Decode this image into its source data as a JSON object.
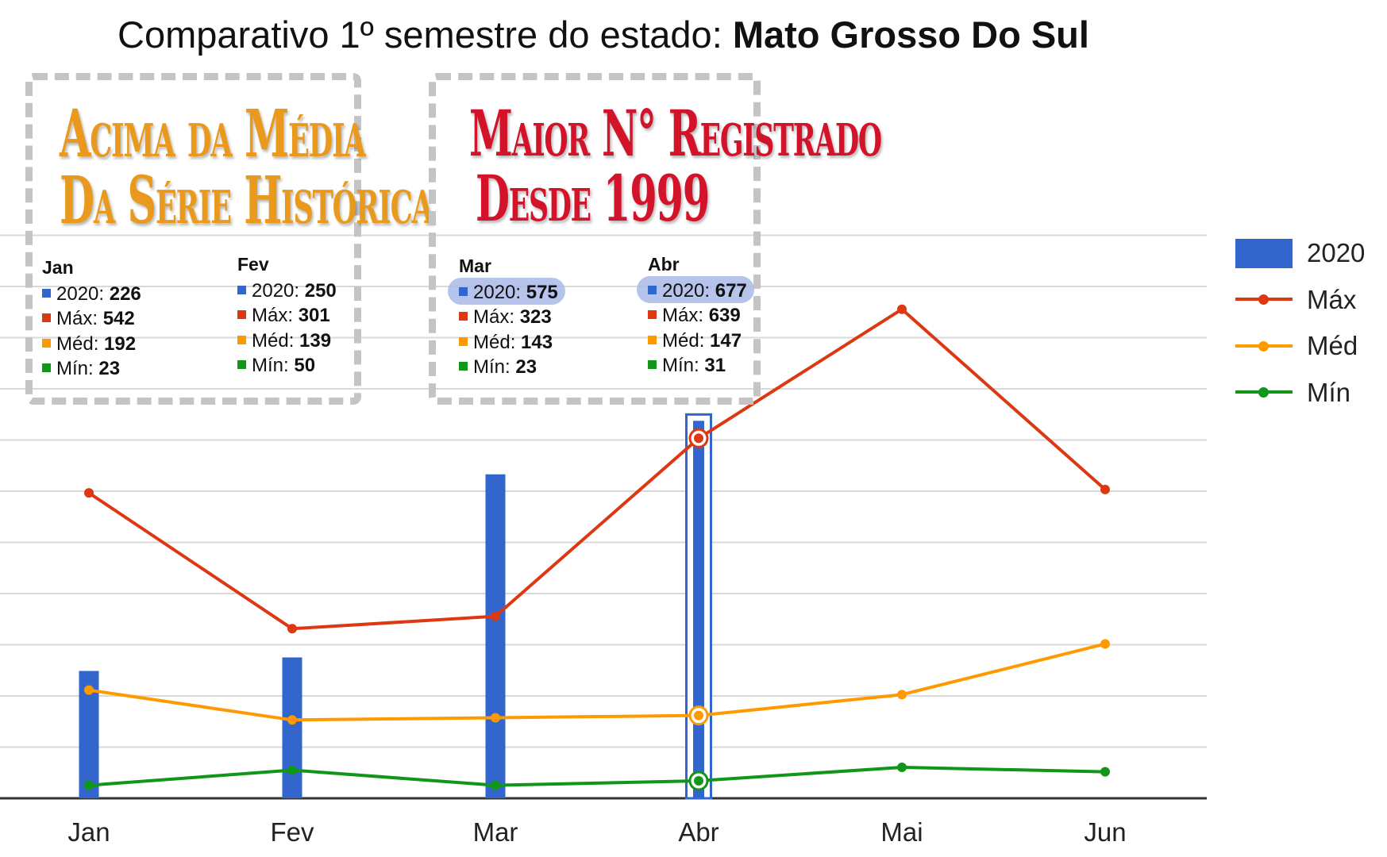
{
  "title": {
    "prefix": "Comparativo 1º semestre do estado: ",
    "state": "Mato Grosso Do Sul"
  },
  "callouts": [
    {
      "line1": "Acima da Média",
      "line2": "Da Série Histórica",
      "color": "#e99a1c"
    },
    {
      "line1": "Maior N° Registrado",
      "line2": "Desde 1999",
      "color": "#d3132a"
    }
  ],
  "tooltips": [
    {
      "month": "Jan",
      "l2020": "2020: ",
      "v2020": "226",
      "lmax": "Máx: ",
      "vmax": "542",
      "lmed": "Méd: ",
      "vmed": "192",
      "lmin": "Mín: ",
      "vmin": "23"
    },
    {
      "month": "Fev",
      "l2020": "2020: ",
      "v2020": "250",
      "lmax": "Máx: ",
      "vmax": "301",
      "lmed": "Méd: ",
      "vmed": "139",
      "lmin": "Mín: ",
      "vmin": "50"
    },
    {
      "month": "Mar",
      "l2020": "2020: ",
      "v2020": "575",
      "lmax": "Máx: ",
      "vmax": "323",
      "lmed": "Méd: ",
      "vmed": "143",
      "lmin": "Mín: ",
      "vmin": "23"
    },
    {
      "month": "Abr",
      "l2020": "2020: ",
      "v2020": "677",
      "lmax": "Máx: ",
      "vmax": "639",
      "lmed": "Méd: ",
      "vmed": "147",
      "lmin": "Mín: ",
      "vmin": "31"
    }
  ],
  "colors": {
    "bar": "#3366cc",
    "max": "#dc3912",
    "med": "#ff9900",
    "min": "#109618",
    "grid": "#d9d9d9",
    "axis": "#333333"
  },
  "chart_data": {
    "type": "bar",
    "categories": [
      "Jan",
      "Fev",
      "Mar",
      "Abr",
      "Mai",
      "Jun"
    ],
    "series": [
      {
        "name": "2020",
        "type": "bar",
        "values": [
          226,
          250,
          575,
          677,
          null,
          null
        ]
      },
      {
        "name": "Máx",
        "type": "line",
        "values": [
          542,
          301,
          323,
          639,
          868,
          548
        ]
      },
      {
        "name": "Méd",
        "type": "line",
        "values": [
          192,
          139,
          143,
          147,
          184,
          274
        ]
      },
      {
        "name": "Mín",
        "type": "line",
        "values": [
          23,
          50,
          23,
          31,
          55,
          47
        ]
      }
    ],
    "ylim": [
      0,
      1000
    ],
    "grid": true,
    "legend": "right",
    "highlighted_category": "Abr"
  }
}
